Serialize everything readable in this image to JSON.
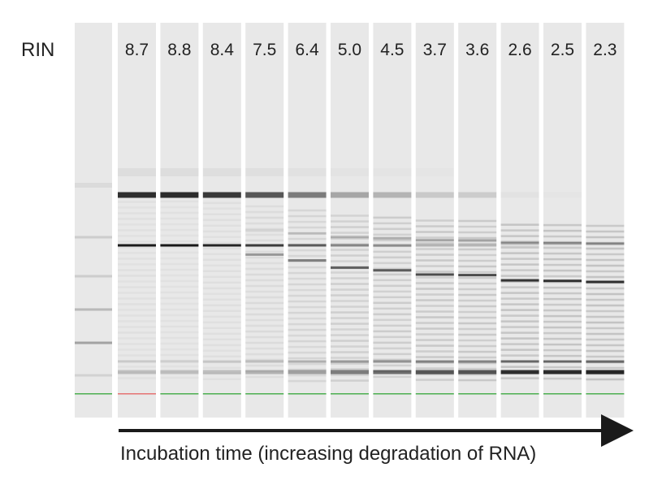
{
  "header": {
    "rin_label": "RIN"
  },
  "lanes": {
    "ladder": {},
    "samples": [
      {
        "rin": "8.7",
        "level": 8.7
      },
      {
        "rin": "8.8",
        "level": 8.8
      },
      {
        "rin": "8.4",
        "level": 8.4
      },
      {
        "rin": "7.5",
        "level": 7.5
      },
      {
        "rin": "6.4",
        "level": 6.4
      },
      {
        "rin": "5.0",
        "level": 5.0
      },
      {
        "rin": "4.5",
        "level": 4.5
      },
      {
        "rin": "3.7",
        "level": 3.7
      },
      {
        "rin": "3.6",
        "level": 3.6
      },
      {
        "rin": "2.6",
        "level": 2.6
      },
      {
        "rin": "2.5",
        "level": 2.5
      },
      {
        "rin": "2.3",
        "level": 2.3
      }
    ]
  },
  "colors": {
    "lane_background": "#e8e8e8",
    "band": "#111111",
    "marker_line": "#4caf50",
    "marker_line_first": "#e57373",
    "arrow": "#1a1a1a",
    "text": "#222222"
  },
  "axis": {
    "caption": "Incubation time (increasing degradation of RNA)"
  }
}
